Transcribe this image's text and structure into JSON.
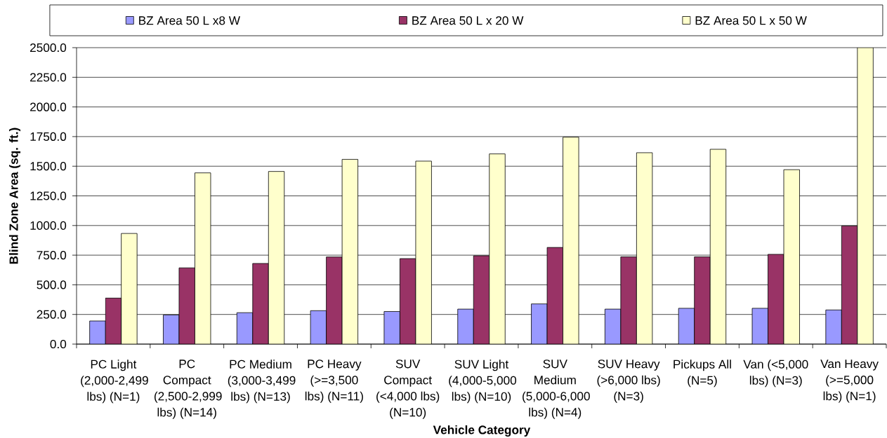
{
  "chart_data": {
    "type": "bar",
    "xlabel": "Vehicle Category",
    "ylabel": "Blind Zone Area (sq. ft.)",
    "categories": [
      "PC Light (2,000-2,499 lbs) (N=1)",
      "PC Compact (2,500-2,999 lbs) (N=14)",
      "PC Medium (3,000-3,499 lbs) (N=13)",
      "PC Heavy (>=3,500 lbs) (N=11)",
      "SUV Compact (<4,000 lbs) (N=10)",
      "SUV Light (4,000-5,000 lbs) (N=10)",
      "SUV Medium (5,000-6,000 lbs) (N=4)",
      "SUV Heavy (>6,000 lbs) (N=3)",
      "Pickups All (N=5)",
      "Van (<5,000 lbs) (N=3)",
      "Van Heavy (>=5,000 lbs) (N=1)"
    ],
    "series": [
      {
        "name": "BZ Area 50 L x8 W",
        "color": "#9999ff",
        "values": [
          195,
          246,
          265,
          282,
          275,
          295,
          339,
          295,
          302,
          302,
          288
        ]
      },
      {
        "name": "BZ Area 50 L x 20 W",
        "color": "#993366",
        "values": [
          388,
          643,
          680,
          735,
          721,
          745,
          815,
          736,
          736,
          757,
          997
        ]
      },
      {
        "name": "BZ Area 50 L x 50 W",
        "color": "#ffffcc",
        "values": [
          933,
          1444,
          1456,
          1558,
          1543,
          1604,
          1745,
          1614,
          1643,
          1471,
          2500
        ]
      }
    ],
    "ylim": [
      0,
      2500
    ],
    "yticks": [
      {
        "value": 0,
        "label": "0.0"
      },
      {
        "value": 250,
        "label": "250.0"
      },
      {
        "value": 500,
        "label": "500.0"
      },
      {
        "value": 750,
        "label": "750.0"
      },
      {
        "value": 1000,
        "label": "1000.0"
      },
      {
        "value": 1250,
        "label": "1250.0"
      },
      {
        "value": 1500,
        "label": "1500.0"
      },
      {
        "value": 1750,
        "label": "1750.0"
      },
      {
        "value": 2000,
        "label": "2000.0"
      },
      {
        "value": 2250,
        "label": "2250.0"
      },
      {
        "value": 2500,
        "label": "2500.0"
      }
    ],
    "grid": "y",
    "legend": "top"
  }
}
